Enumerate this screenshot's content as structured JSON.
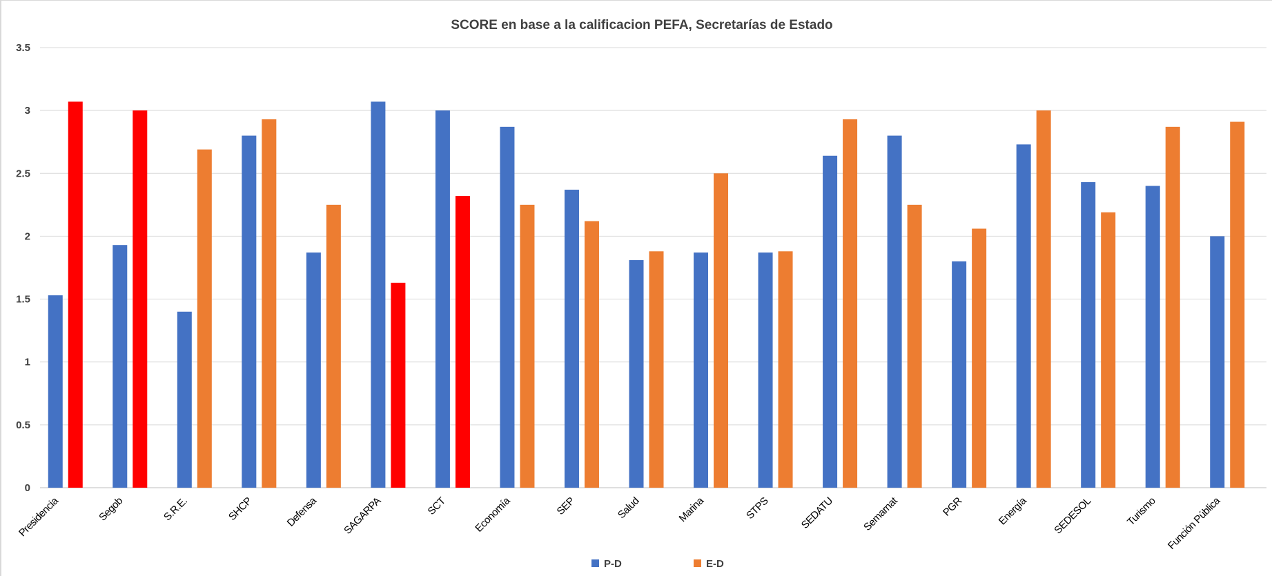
{
  "chart_data": {
    "type": "bar",
    "title": "SCORE en base a la calificacion PEFA, Secretarías de Estado",
    "xlabel": "",
    "ylabel": "",
    "ylim": [
      0,
      3.5
    ],
    "yticks": [
      "0",
      "0.5",
      "1",
      "1.5",
      "2",
      "2.5",
      "3",
      "3.5"
    ],
    "grid": true,
    "legend_position": "bottom",
    "categories": [
      "Presidencia",
      "Segob",
      "S.R.E.",
      "SHCP",
      "Defensa",
      "SAGARPA",
      "SCT",
      "Economía",
      "SEP",
      "Salud",
      "Marina",
      "STPS",
      "SEDATU",
      "Semarnat",
      "PGR",
      "Energía",
      "SEDESOL",
      "Turismo",
      "Función Pública"
    ],
    "series": [
      {
        "name": "P-D",
        "color": "#4472c4",
        "values": [
          1.53,
          1.93,
          1.4,
          2.8,
          1.87,
          3.07,
          3.0,
          2.87,
          2.37,
          1.81,
          1.87,
          1.87,
          2.64,
          2.8,
          1.8,
          2.73,
          2.43,
          2.4,
          2.0
        ]
      },
      {
        "name": "E-D",
        "color": "#ed7d31",
        "highlight_color": "#ff0000",
        "highlighted_categories": [
          "Presidencia",
          "Segob",
          "SAGARPA",
          "SCT"
        ],
        "values": [
          3.07,
          3.0,
          2.69,
          2.93,
          2.25,
          1.63,
          2.32,
          2.25,
          2.12,
          1.88,
          2.5,
          1.88,
          2.93,
          2.25,
          2.06,
          3.0,
          2.19,
          2.87,
          2.91
        ]
      }
    ]
  }
}
